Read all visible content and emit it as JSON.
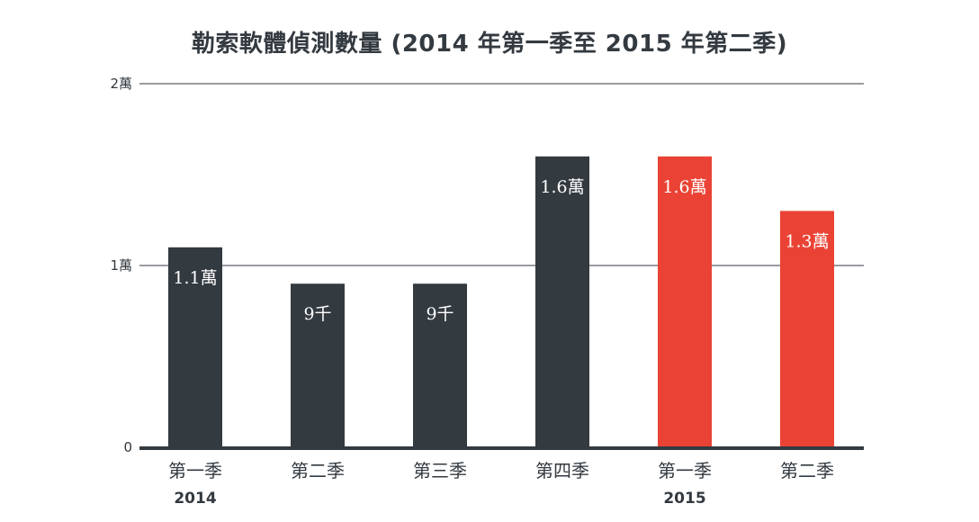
{
  "chart_data": {
    "type": "bar",
    "title": "勒索軟體偵測數量 (2014 年第一季至 2015 年第二季)",
    "categories": [
      "第一季",
      "第二季",
      "第三季",
      "第四季",
      "第一季",
      "第二季"
    ],
    "year_labels": [
      {
        "category_index": 0,
        "label": "2014"
      },
      {
        "category_index": 4,
        "label": "2015"
      }
    ],
    "values": [
      11000,
      9000,
      9000,
      16000,
      16000,
      13000
    ],
    "data_labels": [
      "1.1萬",
      "9千",
      "9千",
      "1.6萬",
      "1.6萬",
      "1.3萬"
    ],
    "bar_colors": [
      "#333a40",
      "#333a40",
      "#333a40",
      "#333a40",
      "#ea4335",
      "#ea4335"
    ],
    "y_ticks": [
      {
        "value": 0,
        "label": "0"
      },
      {
        "value": 10000,
        "label": "1萬"
      },
      {
        "value": 20000,
        "label": "2萬"
      }
    ],
    "ylim": [
      0,
      20000
    ],
    "grid": true,
    "xlabel": "",
    "ylabel": ""
  }
}
